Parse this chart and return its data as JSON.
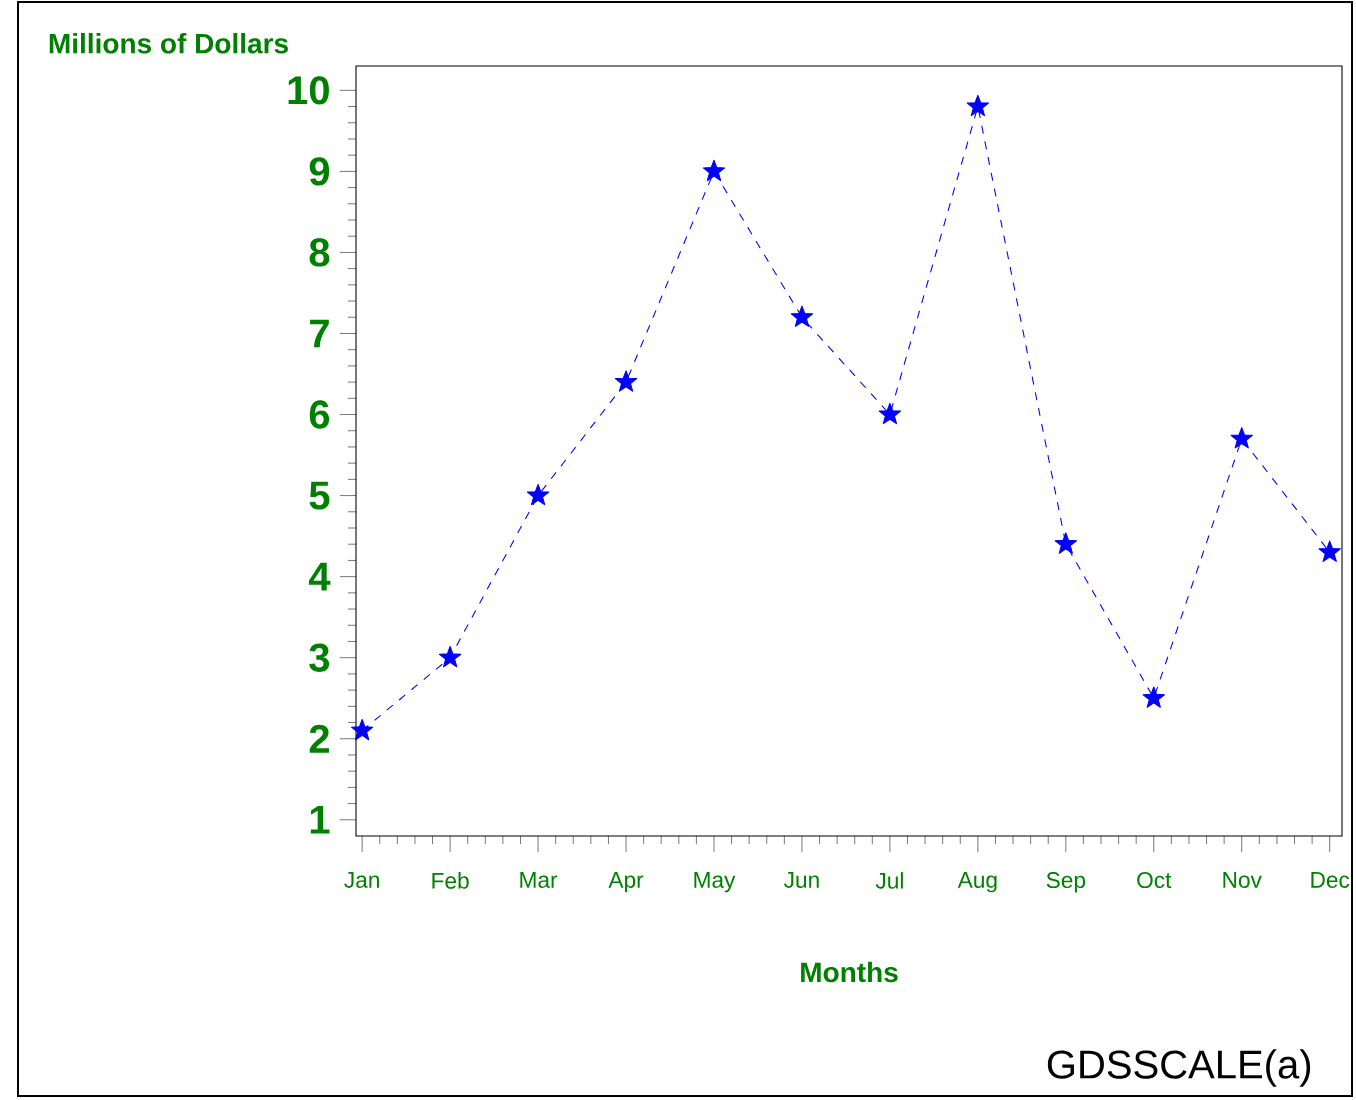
{
  "chart_data": {
    "type": "line",
    "xlabel": "Months",
    "ylabel": "Millions of Dollars",
    "categories": [
      "Jan",
      "Feb",
      "Mar",
      "Apr",
      "May",
      "Jun",
      "Jul",
      "Aug",
      "Sep",
      "Oct",
      "Nov",
      "Dec"
    ],
    "series": [
      {
        "color": "#0000ff",
        "values": [
          2.1,
          3.0,
          5.0,
          6.4,
          9.0,
          7.2,
          6.0,
          9.8,
          4.4,
          2.5,
          5.7,
          4.3
        ]
      }
    ],
    "ylim": [
      0.8,
      10.3
    ],
    "yticks": [
      1,
      2,
      3,
      4,
      5,
      6,
      7,
      8,
      9,
      10
    ],
    "marker": "star",
    "line_style": "dashed",
    "annotations": [
      "GDSSCALE(a)"
    ]
  }
}
